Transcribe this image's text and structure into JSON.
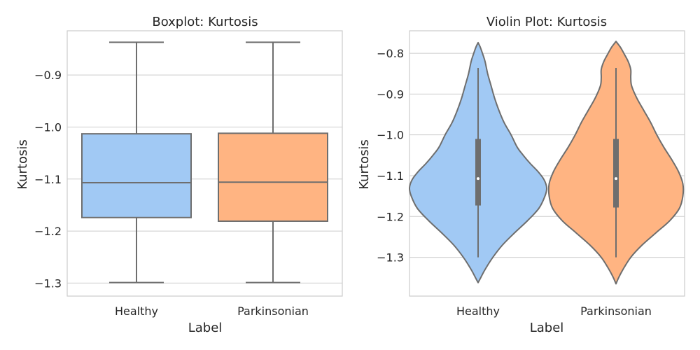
{
  "chart_data": [
    {
      "type": "boxplot",
      "title": "Boxplot: Kurtosis",
      "xlabel": "Label",
      "ylabel": "Kurtosis",
      "ylim": [
        -1.325,
        -0.815
      ],
      "yticks": [
        -1.3,
        -1.2,
        -1.1,
        -1.0,
        -0.9
      ],
      "ytick_labels": [
        "−1.3",
        "−1.2",
        "−1.1",
        "−1.0",
        "−0.9"
      ],
      "grid": "horizontal",
      "categories": [
        "Healthy",
        "Parkinsonian"
      ],
      "colors": [
        "#a1c9f4",
        "#ffb482"
      ],
      "boxes": [
        {
          "category": "Healthy",
          "whisker_low": -1.299,
          "q1": -1.174,
          "median": -1.107,
          "q3": -1.013,
          "whisker_high": -0.837
        },
        {
          "category": "Parkinsonian",
          "whisker_low": -1.299,
          "q1": -1.181,
          "median": -1.106,
          "q3": -1.012,
          "whisker_high": -0.837
        }
      ]
    },
    {
      "type": "violin",
      "title": "Violin Plot: Kurtosis",
      "xlabel": "Label",
      "ylabel": "Kurtosis",
      "ylim": [
        -1.395,
        -0.745
      ],
      "yticks": [
        -1.3,
        -1.2,
        -1.1,
        -1.0,
        -0.9,
        -0.8
      ],
      "ytick_labels": [
        "−1.3",
        "−1.2",
        "−1.1",
        "−1.0",
        "−0.9",
        "−0.8"
      ],
      "grid": "horizontal",
      "categories": [
        "Healthy",
        "Parkinsonian"
      ],
      "colors": [
        "#a1c9f4",
        "#ffb482"
      ],
      "violins": [
        {
          "category": "Healthy",
          "q1": -1.173,
          "median": -1.107,
          "q3": -1.01,
          "min": -1.3,
          "max": -0.836,
          "extent": [
            -1.362,
            -0.774
          ],
          "density_y": [
            -1.362,
            -1.35,
            -1.33,
            -1.3,
            -1.27,
            -1.24,
            -1.21,
            -1.18,
            -1.15,
            -1.13,
            -1.11,
            -1.09,
            -1.07,
            -1.05,
            -1.03,
            -1.0,
            -0.97,
            -0.94,
            -0.91,
            -0.88,
            -0.85,
            -0.82,
            -0.8,
            -0.785,
            -0.774
          ],
          "density_w": [
            0.0,
            0.03,
            0.08,
            0.17,
            0.28,
            0.42,
            0.57,
            0.7,
            0.77,
            0.79,
            0.76,
            0.69,
            0.6,
            0.52,
            0.45,
            0.38,
            0.3,
            0.24,
            0.19,
            0.15,
            0.11,
            0.08,
            0.05,
            0.025,
            0.0
          ]
        },
        {
          "category": "Parkinsonian",
          "q1": -1.178,
          "median": -1.107,
          "q3": -1.01,
          "min": -1.3,
          "max": -0.836,
          "extent": [
            -1.365,
            -0.771
          ],
          "density_y": [
            -1.365,
            -1.35,
            -1.33,
            -1.3,
            -1.27,
            -1.24,
            -1.21,
            -1.18,
            -1.15,
            -1.12,
            -1.09,
            -1.06,
            -1.03,
            -1.0,
            -0.97,
            -0.94,
            -0.91,
            -0.88,
            -0.86,
            -0.84,
            -0.82,
            -0.8,
            -0.785,
            -0.771
          ],
          "density_w": [
            0.0,
            0.03,
            0.08,
            0.17,
            0.3,
            0.46,
            0.62,
            0.73,
            0.77,
            0.77,
            0.72,
            0.64,
            0.55,
            0.47,
            0.4,
            0.32,
            0.24,
            0.18,
            0.17,
            0.17,
            0.14,
            0.09,
            0.05,
            0.0
          ]
        }
      ]
    }
  ]
}
